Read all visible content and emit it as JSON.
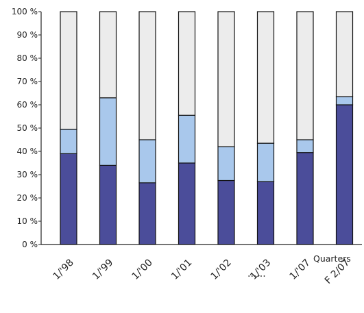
{
  "chart_data": {
    "type": "bar",
    "stacked": true,
    "percent": true,
    "xlabel": "Quarters",
    "ylabel": "",
    "ylim": [
      0,
      100
    ],
    "yticks": [
      "0 %",
      "10 %",
      "20 %",
      "30 %",
      "40 %",
      "50 %",
      "60 %",
      "70 %",
      "80 %",
      "90 %",
      "100 %"
    ],
    "categories": [
      "1/'98",
      "1/'99",
      "1/'00",
      "1/'01",
      "1/'02",
      "1/'03",
      "1/'07",
      "F 2/07"
    ],
    "axis_break_after": "1/'03",
    "axis_break_label": "......",
    "series": [
      {
        "color": "#4b4d9a",
        "values": [
          39,
          34,
          26.5,
          35,
          27.5,
          27,
          39.5,
          60
        ]
      },
      {
        "color": "#a9c8ec",
        "values": [
          10.5,
          29,
          18.5,
          20.5,
          14.5,
          16.5,
          5.5,
          3.5
        ]
      },
      {
        "color": "#ececec",
        "values": [
          50.5,
          37,
          55,
          44.5,
          58,
          56.5,
          55,
          36.5
        ]
      }
    ],
    "grid": false,
    "legend": "none"
  }
}
